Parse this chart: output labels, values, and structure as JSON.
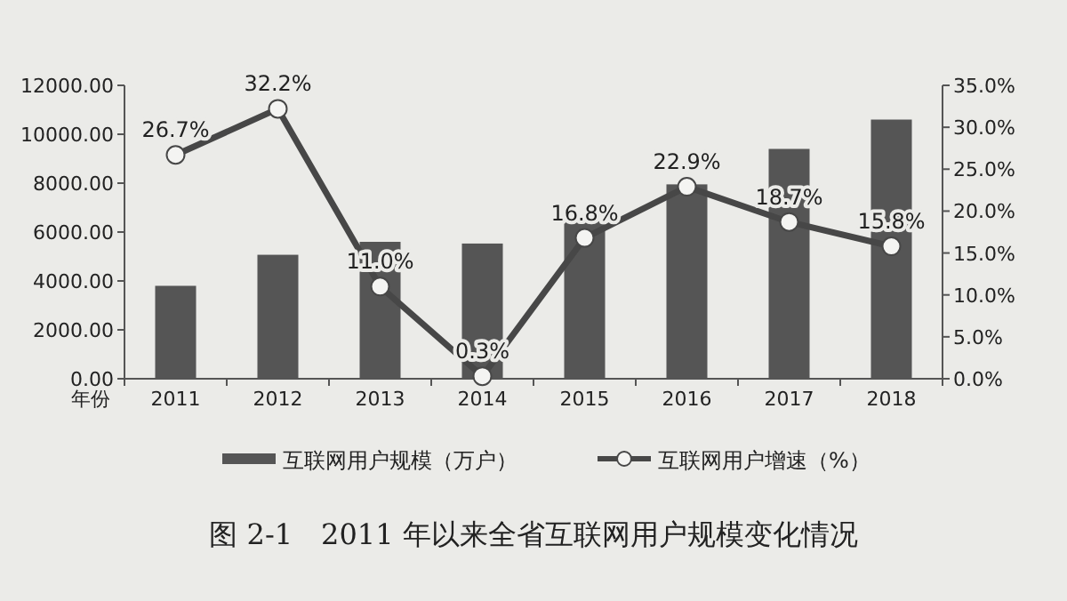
{
  "chart_data": {
    "type": "bar",
    "title": "图 2-1　2011 年以来全省互联网用户规模变化情况",
    "xlabel": "年份",
    "categories": [
      "2011",
      "2012",
      "2013",
      "2014",
      "2015",
      "2016",
      "2017",
      "2018"
    ],
    "series": [
      {
        "name": "互联网用户规模（万户）",
        "color": "#555555",
        "values": [
          3800,
          5070,
          5600,
          5530,
          6440,
          7950,
          9400,
          10600
        ]
      },
      {
        "name": "互联网用户增速（%）",
        "type": "line",
        "axis": "y2",
        "color": "#474747",
        "marker": "circle",
        "values": [
          26.7,
          32.2,
          11.0,
          0.3,
          16.8,
          22.9,
          18.7,
          15.8
        ],
        "value_labels": [
          "26.7%",
          "32.2%",
          "11.0%",
          "0.3%",
          "16.8%",
          "22.9%",
          "18.7%",
          "15.8%"
        ]
      }
    ],
    "ylim": [
      0,
      12000
    ],
    "yticks": [
      {
        "value": 0,
        "label": "0.00"
      },
      {
        "value": 2000,
        "label": "2000.00"
      },
      {
        "value": 4000,
        "label": "4000.00"
      },
      {
        "value": 6000,
        "label": "6000.00"
      },
      {
        "value": 8000,
        "label": "8000.00"
      },
      {
        "value": 10000,
        "label": "10000.00"
      },
      {
        "value": 12000,
        "label": "12000.00"
      }
    ],
    "y2lim": [
      0,
      35
    ],
    "y2ticks": [
      {
        "value": 0,
        "label": "0.0%"
      },
      {
        "value": 5,
        "label": "5.0%"
      },
      {
        "value": 10,
        "label": "10.0%"
      },
      {
        "value": 15,
        "label": "15.0%"
      },
      {
        "value": 20,
        "label": "20.0%"
      },
      {
        "value": 25,
        "label": "25.0%"
      },
      {
        "value": 30,
        "label": "30.0%"
      },
      {
        "value": 35,
        "label": "35.0%"
      }
    ],
    "legend": "bottom"
  }
}
